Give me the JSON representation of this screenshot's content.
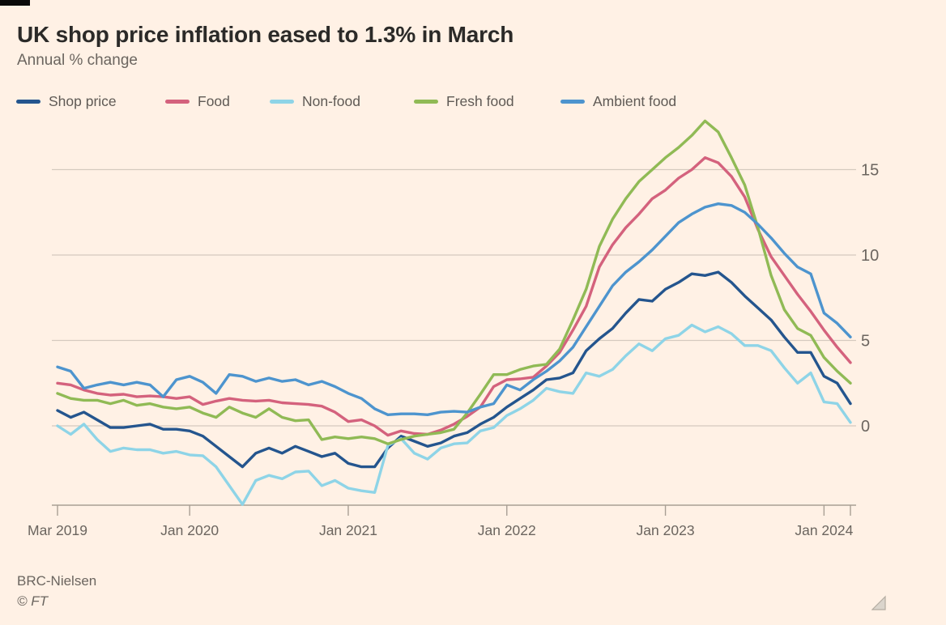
{
  "header": {
    "title": "UK shop price inflation eased to 1.3% in March",
    "subtitle": "Annual % change"
  },
  "source": {
    "text": "BRC-Nielsen",
    "copyright": "© FT"
  },
  "style": {
    "background": "#FFF1E5",
    "grid_color": "#d5cabf",
    "axis_color": "#a89f94",
    "axis_text_color": "#6b655f",
    "title_color": "#2b2a28"
  },
  "chart_data": {
    "type": "line",
    "title": "UK shop price inflation eased to 1.3% in March",
    "ylabel": "Annual % change",
    "grid": "horizontal",
    "legend_position": "top",
    "x_range": [
      "Mar 2019",
      "Mar 2024"
    ],
    "x_ticks": [
      {
        "index": 0,
        "label": "Mar 2019"
      },
      {
        "index": 10,
        "label": "Jan 2020"
      },
      {
        "index": 22,
        "label": "Jan 2021"
      },
      {
        "index": 34,
        "label": "Jan 2022"
      },
      {
        "index": 46,
        "label": "Jan 2023"
      },
      {
        "index": 58,
        "label": "Jan 2024"
      }
    ],
    "end_tick_index": 60,
    "y_ticks": [
      15,
      10,
      5,
      0
    ],
    "ylim": [
      -4.6,
      18.2
    ],
    "series": [
      {
        "name": "Shop price",
        "color": "#24558e",
        "values": [
          0.9,
          0.5,
          0.8,
          0.35,
          -0.1,
          -0.1,
          0.0,
          0.1,
          -0.2,
          -0.2,
          -0.3,
          -0.6,
          -1.2,
          -1.8,
          -2.4,
          -1.6,
          -1.3,
          -1.6,
          -1.2,
          -1.5,
          -1.8,
          -1.6,
          -2.2,
          -2.4,
          -2.4,
          -1.3,
          -0.6,
          -0.9,
          -1.2,
          -1.0,
          -0.6,
          -0.4,
          0.1,
          0.5,
          1.1,
          1.6,
          2.1,
          2.7,
          2.8,
          3.1,
          4.4,
          5.1,
          5.7,
          6.6,
          7.4,
          7.3,
          8.0,
          8.4,
          8.9,
          8.8,
          9.0,
          8.4,
          7.6,
          6.9,
          6.2,
          5.2,
          4.3,
          4.3,
          2.9,
          2.5,
          1.3
        ]
      },
      {
        "name": "Food",
        "color": "#d4627d",
        "values": [
          2.5,
          2.4,
          2.1,
          1.9,
          1.8,
          1.85,
          1.7,
          1.75,
          1.7,
          1.6,
          1.7,
          1.25,
          1.45,
          1.6,
          1.5,
          1.45,
          1.5,
          1.35,
          1.3,
          1.25,
          1.15,
          0.8,
          0.25,
          0.35,
          0.0,
          -0.55,
          -0.3,
          -0.45,
          -0.5,
          -0.25,
          0.1,
          0.55,
          1.1,
          2.3,
          2.7,
          2.75,
          2.85,
          3.5,
          4.3,
          5.6,
          7.0,
          9.3,
          10.6,
          11.6,
          12.4,
          13.3,
          13.8,
          14.5,
          15.0,
          15.7,
          15.4,
          14.6,
          13.4,
          11.5,
          9.9,
          8.8,
          7.7,
          6.7,
          5.6,
          4.6,
          3.7
        ]
      },
      {
        "name": "Non-food",
        "color": "#8ed4e7",
        "values": [
          0.0,
          -0.5,
          0.1,
          -0.8,
          -1.5,
          -1.3,
          -1.4,
          -1.4,
          -1.6,
          -1.5,
          -1.7,
          -1.75,
          -2.4,
          -3.5,
          -4.6,
          -3.2,
          -2.9,
          -3.1,
          -2.7,
          -2.65,
          -3.5,
          -3.2,
          -3.65,
          -3.8,
          -3.9,
          -1.15,
          -0.75,
          -1.6,
          -1.95,
          -1.3,
          -1.05,
          -1.0,
          -0.3,
          -0.1,
          0.6,
          1.0,
          1.5,
          2.2,
          2.0,
          1.9,
          3.1,
          2.9,
          3.3,
          4.1,
          4.8,
          4.4,
          5.1,
          5.3,
          5.9,
          5.5,
          5.8,
          5.4,
          4.7,
          4.7,
          4.4,
          3.4,
          2.5,
          3.1,
          1.4,
          1.3,
          0.2
        ]
      },
      {
        "name": "Fresh food",
        "color": "#90ba55",
        "values": [
          1.9,
          1.6,
          1.5,
          1.5,
          1.3,
          1.5,
          1.2,
          1.3,
          1.1,
          1.0,
          1.1,
          0.75,
          0.5,
          1.1,
          0.75,
          0.5,
          1.0,
          0.5,
          0.3,
          0.35,
          -0.8,
          -0.65,
          -0.75,
          -0.65,
          -0.75,
          -1.05,
          -0.8,
          -0.6,
          -0.5,
          -0.4,
          -0.2,
          0.75,
          1.85,
          3.0,
          3.0,
          3.3,
          3.5,
          3.6,
          4.5,
          6.2,
          8.0,
          10.5,
          12.1,
          13.3,
          14.3,
          15.0,
          15.7,
          16.3,
          17.0,
          17.85,
          17.2,
          15.7,
          14.1,
          11.6,
          8.8,
          6.8,
          5.7,
          5.3,
          4.0,
          3.2,
          2.5
        ]
      },
      {
        "name": "Ambient food",
        "color": "#4d94ce",
        "values": [
          3.45,
          3.2,
          2.2,
          2.4,
          2.55,
          2.4,
          2.55,
          2.4,
          1.7,
          2.7,
          2.9,
          2.55,
          1.9,
          3.0,
          2.9,
          2.6,
          2.8,
          2.6,
          2.7,
          2.4,
          2.6,
          2.3,
          1.9,
          1.6,
          1.0,
          0.65,
          0.7,
          0.7,
          0.65,
          0.8,
          0.85,
          0.8,
          1.1,
          1.3,
          2.4,
          2.1,
          2.7,
          3.2,
          3.8,
          4.6,
          5.8,
          7.0,
          8.2,
          9.0,
          9.6,
          10.3,
          11.1,
          11.9,
          12.4,
          12.8,
          13.0,
          12.9,
          12.5,
          11.8,
          11.0,
          10.1,
          9.3,
          8.9,
          6.6,
          6.0,
          5.2
        ]
      }
    ]
  }
}
